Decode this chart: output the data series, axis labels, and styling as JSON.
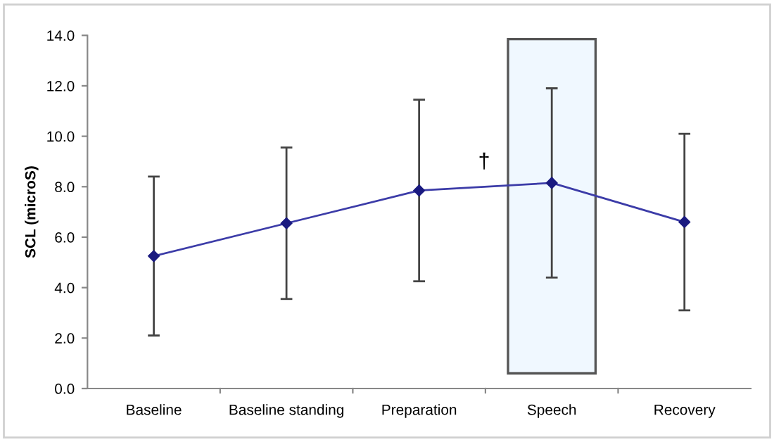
{
  "chart_data": {
    "type": "line",
    "ylabel": "SCL (microS)",
    "categories": [
      "Baseline",
      "Baseline standing",
      "Preparation",
      "Speech",
      "Recovery"
    ],
    "series": [
      {
        "color": "#3c3ca8",
        "values": [
          5.25,
          6.55,
          7.85,
          8.15,
          6.6
        ],
        "errors": [
          3.15,
          3.0,
          3.6,
          3.75,
          3.5
        ]
      }
    ],
    "ylim": [
      0,
      14
    ],
    "yticks": [
      {
        "value": 0,
        "label": "0.0"
      },
      {
        "value": 2,
        "label": "2.0"
      },
      {
        "value": 4,
        "label": "4.0"
      },
      {
        "value": 6,
        "label": "6.0"
      },
      {
        "value": 8,
        "label": "8.0"
      },
      {
        "value": 10,
        "label": "10.0"
      },
      {
        "value": 12,
        "label": "12.0"
      },
      {
        "value": 14,
        "label": "14.0"
      }
    ],
    "bands": [
      {
        "axis": "x",
        "from": "Speech",
        "to": "Speech",
        "color": "#f0f8ff"
      }
    ],
    "annotations": [
      "†"
    ],
    "marker": "diamond",
    "line_style": "solid",
    "grid": false,
    "legend": false
  }
}
